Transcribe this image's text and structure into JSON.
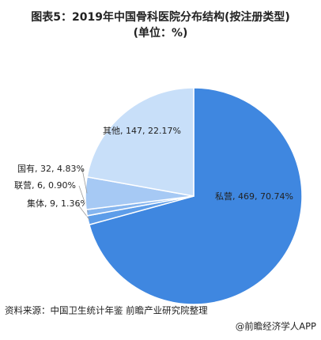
{
  "chart_data": {
    "type": "pie",
    "title": "图表5：2019年中国骨科医院分布结构(按注册类型)",
    "subtitle": "(单位：%)",
    "values": [
      70.74,
      1.36,
      0.9,
      4.83,
      22.17
    ],
    "value_labels": [
      "私营, 469, 70.74%",
      "集体, 9, 1.36%",
      "联营, 6, 0.90%",
      "国有, 32, 4.83%",
      "其他, 147, 22.17%"
    ],
    "colors": [
      "#3f87e0",
      "#5d9de9",
      "#85b5ef",
      "#a6c9f4",
      "#c8dff9"
    ],
    "source": "资料来源：中国卫生统计年鉴 前瞻产业研究院整理",
    "footer": "@前瞻经济学人APP"
  }
}
